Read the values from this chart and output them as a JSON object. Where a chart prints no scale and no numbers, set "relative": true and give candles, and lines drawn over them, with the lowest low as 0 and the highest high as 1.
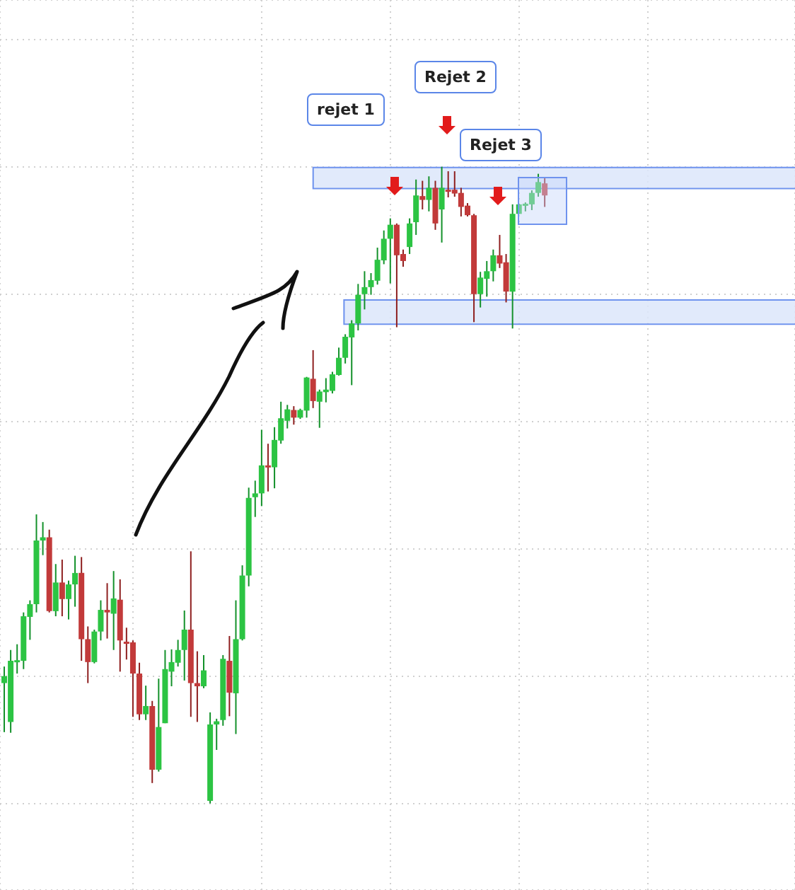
{
  "chart_data": {
    "type": "candlestick",
    "relative": true,
    "grid": true,
    "annotations": [
      "rejet 1",
      "Rejet 2",
      "Rejet 3"
    ],
    "bands": [
      {
        "axis": "y",
        "from": 0.967,
        "to": 1.0,
        "color": "#dce6fa"
      },
      {
        "axis": "y",
        "from": 0.754,
        "to": 0.792,
        "color": "#dce6fa"
      }
    ],
    "categories": [
      null,
      null,
      null,
      null,
      null,
      null,
      null,
      null,
      null,
      null,
      null,
      null,
      null,
      null,
      null,
      null,
      null,
      null,
      null,
      null,
      null,
      null,
      null,
      null,
      null,
      null,
      null,
      null,
      null,
      null,
      null,
      null,
      null,
      null,
      null,
      null,
      null,
      null,
      null,
      null,
      null,
      null,
      null,
      null,
      null,
      null,
      null,
      null,
      null,
      null,
      null,
      null,
      null,
      null,
      null,
      null,
      null,
      null,
      null,
      null,
      null,
      null,
      null,
      null,
      null,
      null,
      null,
      null,
      null,
      null,
      null,
      null,
      null,
      null,
      null,
      null,
      null,
      null,
      null,
      null,
      null,
      null,
      null,
      null,
      null
    ],
    "ohlc": [
      [
        0.189,
        0.215,
        0.112,
        0.2
      ],
      [
        0.128,
        0.241,
        0.111,
        0.224
      ],
      [
        0.224,
        0.25,
        0.204,
        0.225
      ],
      [
        0.224,
        0.3,
        0.211,
        0.294
      ],
      [
        0.293,
        0.319,
        0.257,
        0.313
      ],
      [
        0.313,
        0.454,
        0.3,
        0.413
      ],
      [
        0.413,
        0.442,
        0.39,
        0.418
      ],
      [
        0.418,
        0.43,
        0.3,
        0.302
      ],
      [
        0.302,
        0.376,
        0.294,
        0.347
      ],
      [
        0.347,
        0.383,
        0.294,
        0.321
      ],
      [
        0.321,
        0.35,
        0.289,
        0.344
      ],
      [
        0.344,
        0.389,
        0.309,
        0.362
      ],
      [
        0.362,
        0.387,
        0.224,
        0.258
      ],
      [
        0.258,
        0.278,
        0.189,
        0.222
      ],
      [
        0.222,
        0.273,
        0.22,
        0.27
      ],
      [
        0.27,
        0.319,
        0.256,
        0.304
      ],
      [
        0.304,
        0.346,
        0.259,
        0.3
      ],
      [
        0.298,
        0.365,
        0.241,
        0.322
      ],
      [
        0.32,
        0.352,
        0.207,
        0.256
      ],
      [
        0.254,
        0.276,
        0.226,
        0.252
      ],
      [
        0.253,
        0.256,
        0.136,
        0.204
      ],
      [
        0.204,
        0.221,
        0.131,
        0.14
      ],
      [
        0.14,
        0.185,
        0.131,
        0.153
      ],
      [
        0.153,
        0.161,
        0.032,
        0.053
      ],
      [
        0.053,
        0.196,
        0.05,
        0.12
      ],
      [
        0.126,
        0.241,
        0.126,
        0.211
      ],
      [
        0.207,
        0.242,
        0.184,
        0.222
      ],
      [
        0.221,
        0.257,
        0.215,
        0.241
      ],
      [
        0.241,
        0.303,
        0.193,
        0.273
      ],
      [
        0.273,
        0.396,
        0.136,
        0.189
      ],
      [
        0.189,
        0.239,
        0.128,
        0.184
      ],
      [
        0.184,
        0.233,
        0.181,
        0.209
      ],
      [
        0.004,
        0.143,
        0,
        0.124
      ],
      [
        0.124,
        0.133,
        0.084,
        0.129
      ],
      [
        0.131,
        0.233,
        0.122,
        0.227
      ],
      [
        0.224,
        0.263,
        0.137,
        0.174
      ],
      [
        0.173,
        0.319,
        0.109,
        0.258
      ],
      [
        0.258,
        0.374,
        0.256,
        0.358
      ],
      [
        0.358,
        0.496,
        0.341,
        0.48
      ],
      [
        0.481,
        0.507,
        0.45,
        0.487
      ],
      [
        0.487,
        0.587,
        0.467,
        0.531
      ],
      [
        0.531,
        0.565,
        0.49,
        0.529
      ],
      [
        0.528,
        0.591,
        0.495,
        0.571
      ],
      [
        0.57,
        0.631,
        0.565,
        0.605
      ],
      [
        0.601,
        0.626,
        0.589,
        0.619
      ],
      [
        0.618,
        0.624,
        0.595,
        0.606
      ],
      [
        0.606,
        0.62,
        0.604,
        0.618
      ],
      [
        0.617,
        0.67,
        0.606,
        0.669
      ],
      [
        0.667,
        0.712,
        0.621,
        0.632
      ],
      [
        0.631,
        0.65,
        0.59,
        0.647
      ],
      [
        0.646,
        0.668,
        0.63,
        0.65
      ],
      [
        0.648,
        0.678,
        0.644,
        0.674
      ],
      [
        0.673,
        0.716,
        0.672,
        0.7
      ],
      [
        0.7,
        0.737,
        0.691,
        0.733
      ],
      [
        0.732,
        0.759,
        0.657,
        0.754
      ],
      [
        0.754,
        0.816,
        0.743,
        0.799
      ],
      [
        0.8,
        0.836,
        0.776,
        0.811
      ],
      [
        0.811,
        0.833,
        0.799,
        0.822
      ],
      [
        0.821,
        0.873,
        0.815,
        0.854
      ],
      [
        0.853,
        0.9,
        0.847,
        0.887
      ],
      [
        0.887,
        0.919,
        0.817,
        0.909
      ],
      [
        0.909,
        0.911,
        0.748,
        0.861
      ],
      [
        0.863,
        0.87,
        0.843,
        0.852
      ],
      [
        0.874,
        0.919,
        0.863,
        0.911
      ],
      [
        0.913,
        0.98,
        0.893,
        0.955
      ],
      [
        0.954,
        0.978,
        0.933,
        0.948
      ],
      [
        0.948,
        0.985,
        0.93,
        0.967
      ],
      [
        0.967,
        0.978,
        0.901,
        0.911
      ],
      [
        0.933,
        1,
        0.881,
        0.967
      ],
      [
        0.964,
        0.993,
        0.952,
        0.963
      ],
      [
        0.964,
        0.993,
        0.953,
        0.958
      ],
      [
        0.959,
        0.967,
        0.922,
        0.937
      ],
      [
        0.939,
        0.943,
        0.922,
        0.924
      ],
      [
        0.924,
        0.926,
        0.756,
        0.8
      ],
      [
        0.8,
        0.835,
        0.779,
        0.826
      ],
      [
        0.824,
        0.852,
        0.796,
        0.836
      ],
      [
        0.836,
        0.87,
        0.82,
        0.861
      ],
      [
        0.861,
        0.893,
        0.841,
        0.848
      ],
      [
        0.85,
        0.863,
        0.787,
        0.804
      ],
      [
        0.804,
        0.941,
        0.746,
        0.926
      ],
      [
        0.926,
        0.942,
        0.926,
        0.941
      ],
      [
        0.94,
        0.944,
        0.93,
        0.942
      ],
      [
        0.941,
        0.963,
        0.932,
        0.959
      ],
      [
        0.959,
        0.989,
        0.953,
        0.976
      ],
      [
        0.974,
        0.983,
        0.937,
        0.955
      ]
    ]
  }
}
